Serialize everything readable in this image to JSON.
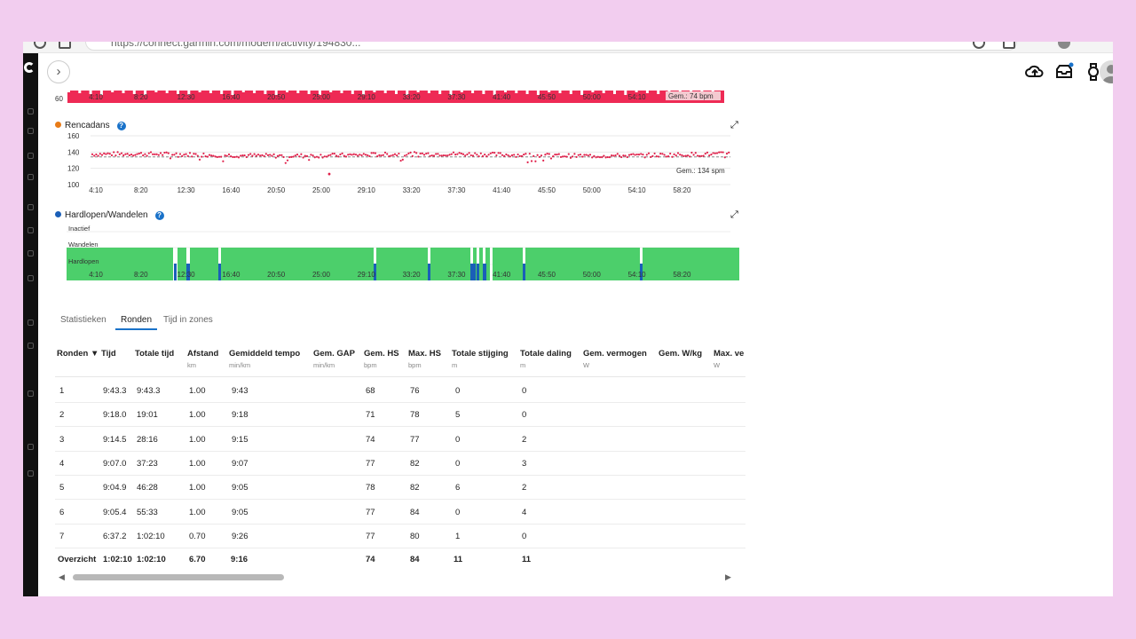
{
  "browser": {
    "url": "https://connect.garmin.com/modern/activity/194830..."
  },
  "topbar": {
    "expand_icon": "chevron-right-icon",
    "icons": [
      "upload-icon",
      "inbox-icon",
      "watch-icon",
      "user-icon"
    ]
  },
  "colors": {
    "hr_fill": "#ee2a55",
    "cadence_dot": "#e0204a",
    "running": "#4ccf6b",
    "walking": "#1a5fb8",
    "accent": "#1a72c9"
  },
  "x_ticks": [
    "4:10",
    "8:20",
    "12:30",
    "16:40",
    "20:50",
    "25:00",
    "29:10",
    "33:20",
    "37:30",
    "41:40",
    "45:50",
    "50:00",
    "54:10",
    "58:20"
  ],
  "hr_chart": {
    "y_label_bottom": "60",
    "avg_label": "Gem.: 74 bpm"
  },
  "cadence_chart": {
    "title": "Rencadans",
    "dot_color": "#e87b17",
    "y_ticks": [
      "160",
      "140",
      "120",
      "100"
    ],
    "avg_label": "Gem.: 134 spm",
    "avg": 134
  },
  "activity_chart": {
    "title": "Hardlopen/Wandelen",
    "dot_color": "#1a5fb8",
    "levels": [
      "Inactief",
      "Wandelen",
      "Hardlopen"
    ]
  },
  "tabs": [
    {
      "label": "Statistieken",
      "active": false
    },
    {
      "label": "Ronden",
      "active": true
    },
    {
      "label": "Tijd in zones",
      "active": false
    }
  ],
  "table": {
    "columns": [
      {
        "label": "Ronden ▼",
        "unit": ""
      },
      {
        "label": "Tijd",
        "unit": ""
      },
      {
        "label": "Totale tijd",
        "unit": ""
      },
      {
        "label": "Afstand",
        "unit": "km"
      },
      {
        "label": "Gemiddeld tempo",
        "unit": "min/km"
      },
      {
        "label": "Gem. GAP",
        "unit": "min/km"
      },
      {
        "label": "Gem. HS",
        "unit": "bpm"
      },
      {
        "label": "Max. HS",
        "unit": "bpm"
      },
      {
        "label": "Totale stijging",
        "unit": "m"
      },
      {
        "label": "Totale daling",
        "unit": "m"
      },
      {
        "label": "Gem. vermogen",
        "unit": "W"
      },
      {
        "label": "Gem. W/kg",
        "unit": ""
      },
      {
        "label": "Max. ve",
        "unit": "W"
      }
    ],
    "rows": [
      [
        "1",
        "9:43.3",
        "9:43.3",
        "1.00",
        "9:43",
        "",
        "68",
        "76",
        "0",
        "0"
      ],
      [
        "2",
        "9:18.0",
        "19:01",
        "1.00",
        "9:18",
        "",
        "71",
        "78",
        "5",
        "0"
      ],
      [
        "3",
        "9:14.5",
        "28:16",
        "1.00",
        "9:15",
        "",
        "74",
        "77",
        "0",
        "2"
      ],
      [
        "4",
        "9:07.0",
        "37:23",
        "1.00",
        "9:07",
        "",
        "77",
        "82",
        "0",
        "3"
      ],
      [
        "5",
        "9:04.9",
        "46:28",
        "1.00",
        "9:05",
        "",
        "78",
        "82",
        "6",
        "2"
      ],
      [
        "6",
        "9:05.4",
        "55:33",
        "1.00",
        "9:05",
        "",
        "77",
        "84",
        "0",
        "4"
      ],
      [
        "7",
        "6:37.2",
        "1:02:10",
        "0.70",
        "9:26",
        "",
        "77",
        "80",
        "1",
        "0"
      ]
    ],
    "total": [
      "Overzicht",
      "1:02:10",
      "1:02:10",
      "6.70",
      "9:16",
      "",
      "74",
      "84",
      "11",
      "11"
    ]
  }
}
